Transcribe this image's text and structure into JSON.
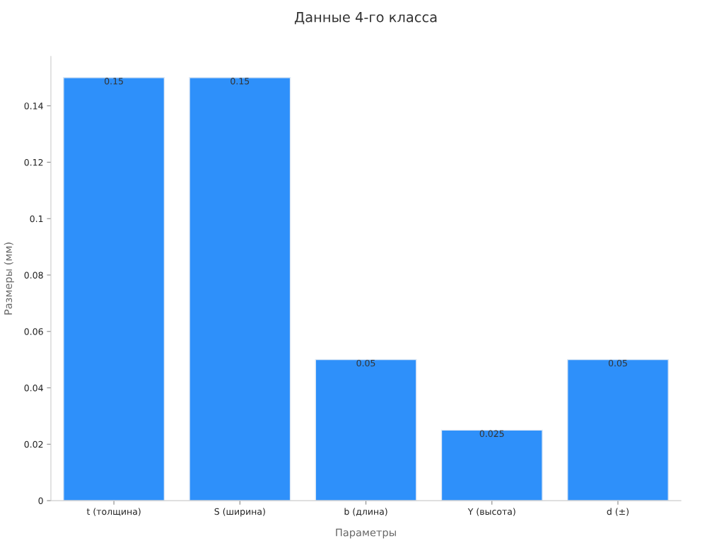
{
  "chart_data": {
    "type": "bar",
    "title": "Данные 4-го класса",
    "xlabel": "Параметры",
    "ylabel": "Размеры (мм)",
    "categories": [
      "t (толщина)",
      "S (ширина)",
      "b (длина)",
      "Y (высота)",
      "d (±)"
    ],
    "values": [
      0.15,
      0.15,
      0.05,
      0.025,
      0.05
    ],
    "color": "#2e90fa",
    "ylim": [
      0,
      0.1575
    ],
    "yticks": [
      0,
      0.02,
      0.04,
      0.06,
      0.08,
      {
        "value": 0.1,
        "label": "0.1"
      },
      0.12,
      0.14
    ],
    "data_labels": true,
    "grid": false,
    "legend": false
  }
}
